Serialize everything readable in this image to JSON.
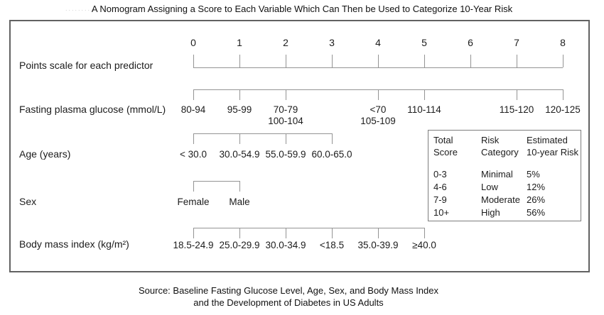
{
  "title": "A Nomogram Assigning a Score to Each Variable Which Can Then be Used to Categorize 10-Year Risk",
  "artifact_dots": "..........",
  "source": {
    "line1": "Source: Baseline Fasting Glucose Level, Age, Sex, and Body Mass Index",
    "line2": "and the Development of Diabetes in US Adults"
  },
  "chart_data": {
    "type": "nomogram",
    "points_scale": {
      "label": "Points scale for each predictor",
      "range": [
        0,
        8
      ],
      "ticks": [
        0,
        1,
        2,
        3,
        4,
        5,
        6,
        7,
        8
      ]
    },
    "predictors": [
      {
        "label": "Fasting plasma glucose (mmol/L)",
        "span": [
          0,
          8
        ],
        "categories": [
          {
            "text": "80-94",
            "points": 0
          },
          {
            "text": "95-99",
            "points": 1
          },
          {
            "text": "70-79",
            "text2": "100-104",
            "points": 2
          },
          {
            "text": "<70",
            "text2": "105-109",
            "points": 4
          },
          {
            "text": "110-114",
            "points": 5
          },
          {
            "text": "115-120",
            "points": 7
          },
          {
            "text": "120-125",
            "points": 8
          }
        ]
      },
      {
        "label": "Age (years)",
        "span": [
          0,
          3
        ],
        "categories": [
          {
            "text": "< 30.0",
            "points": 0
          },
          {
            "text": "30.0-54.9",
            "points": 1
          },
          {
            "text": "55.0-59.9",
            "points": 2
          },
          {
            "text": "60.0-65.0",
            "points": 3
          }
        ]
      },
      {
        "label": "Sex",
        "span": [
          0,
          1
        ],
        "categories": [
          {
            "text": "Female",
            "points": 0
          },
          {
            "text": "Male",
            "points": 1
          }
        ]
      },
      {
        "label": "Body mass index (kg/m²)",
        "span": [
          0,
          5
        ],
        "categories": [
          {
            "text": "18.5-24.9",
            "points": 0
          },
          {
            "text": "25.0-29.9",
            "points": 1
          },
          {
            "text": "30.0-34.9",
            "points": 2
          },
          {
            "text": "<18.5",
            "points": 3
          },
          {
            "text": "35.0-39.9",
            "points": 4
          },
          {
            "text": "≥40.0",
            "points": 5
          }
        ]
      }
    ],
    "risk_table": {
      "headers": [
        [
          "Total",
          "Score"
        ],
        [
          "Risk",
          "Category"
        ],
        [
          "Estimated",
          "10-year Risk"
        ]
      ],
      "rows": [
        [
          "0-3",
          "Minimal",
          "5%"
        ],
        [
          "4-6",
          "Low",
          "12%"
        ],
        [
          "7-9",
          "Moderate",
          "26%"
        ],
        [
          "10+",
          "High",
          "56%"
        ]
      ]
    }
  }
}
